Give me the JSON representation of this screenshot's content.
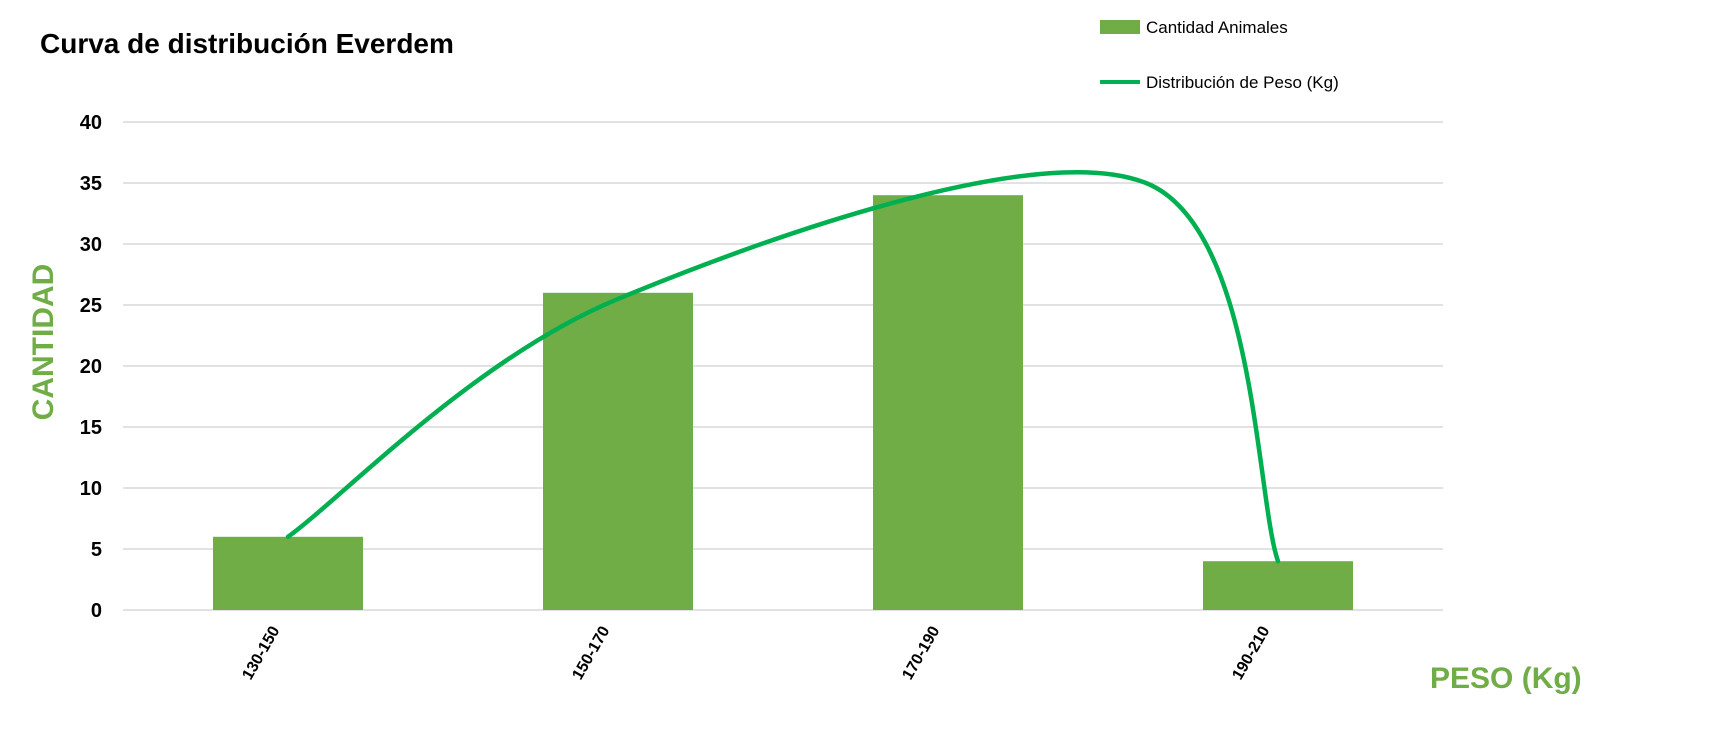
{
  "chart_data": {
    "type": "bar",
    "title": "Curva de distribución Everdem",
    "xlabel": "PESO (Kg)",
    "ylabel": "CANTIDAD",
    "categories": [
      "130-150",
      "150-170",
      "170-190",
      "190-210"
    ],
    "ylim": [
      0,
      40
    ],
    "yticks": [
      0,
      5,
      10,
      15,
      20,
      25,
      30,
      35,
      40
    ],
    "grid": true,
    "legend_position": "top-right",
    "series": [
      {
        "name": "Cantidad Animales",
        "kind": "bar",
        "values": [
          6,
          26,
          34,
          4
        ],
        "color": "#70ad47"
      },
      {
        "name": "Distribución de Peso (Kg)",
        "kind": "line",
        "smooth": true,
        "peak": {
          "x": 2.6,
          "y": 35
        },
        "values": [
          6,
          25.5,
          33,
          4
        ],
        "color": "#00b050"
      }
    ],
    "colors": {
      "axis_title": "#70ad47",
      "grid": "#d0d0d0"
    }
  }
}
